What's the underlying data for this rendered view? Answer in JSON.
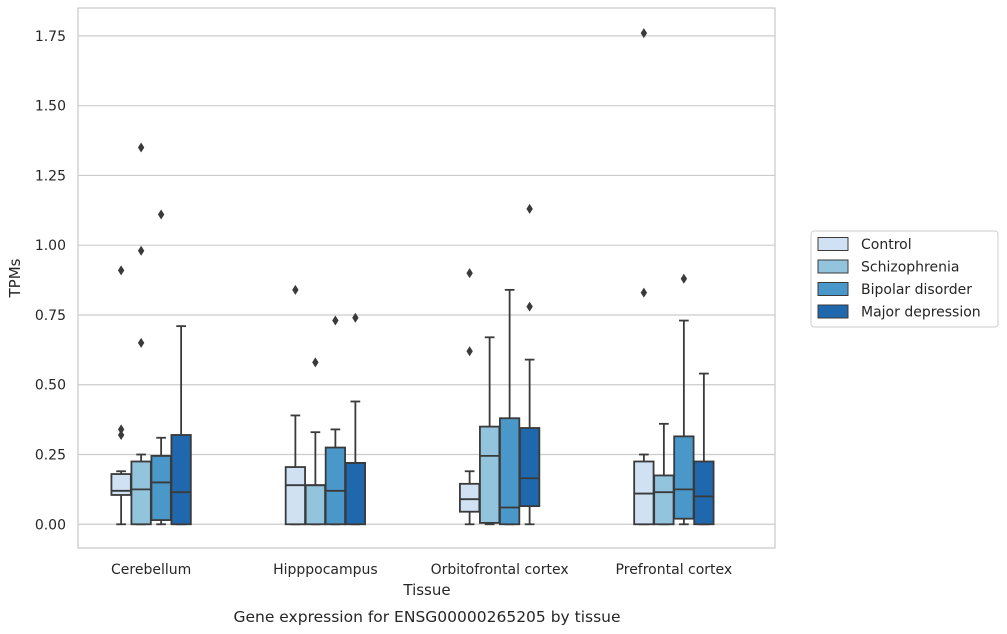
{
  "chart_data": {
    "type": "box",
    "title": "",
    "caption": "Gene expression for ENSG00000265205 by tissue",
    "xlabel": "Tissue",
    "ylabel": "TPMs",
    "ylim": [
      -0.085,
      1.85
    ],
    "yticks": [
      0.0,
      0.25,
      0.5,
      0.75,
      1.0,
      1.25,
      1.5,
      1.75
    ],
    "ytick_labels": [
      "0.00",
      "0.25",
      "0.50",
      "0.75",
      "1.00",
      "1.25",
      "1.50",
      "1.75"
    ],
    "grid": "horizontal",
    "legend_position": "right",
    "categories": [
      "Cerebellum",
      "Hipppocampus",
      "Orbitofrontal cortex",
      "Prefrontal cortex"
    ],
    "series": [
      {
        "name": "Control",
        "color": "#cfe1f2",
        "boxes": [
          {
            "whislo": 0.0,
            "q1": 0.105,
            "med": 0.12,
            "q3": 0.18,
            "whishi": 0.19,
            "fliers": [
              0.91,
              0.34,
              0.32
            ]
          },
          {
            "whislo": 0.0,
            "q1": 0.0,
            "med": 0.14,
            "q3": 0.205,
            "whishi": 0.39,
            "fliers": [
              0.84
            ]
          },
          {
            "whislo": 0.0,
            "q1": 0.045,
            "med": 0.09,
            "q3": 0.145,
            "whishi": 0.19,
            "fliers": [
              0.9,
              0.62
            ]
          },
          {
            "whislo": 0.0,
            "q1": 0.0,
            "med": 0.11,
            "q3": 0.225,
            "whishi": 0.25,
            "fliers": [
              1.76,
              0.83
            ]
          }
        ]
      },
      {
        "name": "Schizophrenia",
        "color": "#93c4de",
        "boxes": [
          {
            "whislo": 0.0,
            "q1": 0.0,
            "med": 0.125,
            "q3": 0.225,
            "whishi": 0.25,
            "fliers": [
              1.35,
              0.98,
              0.65
            ]
          },
          {
            "whislo": 0.0,
            "q1": 0.0,
            "med": 0.14,
            "q3": 0.14,
            "whishi": 0.33,
            "fliers": [
              0.58
            ]
          },
          {
            "whislo": 0.0,
            "q1": 0.005,
            "med": 0.245,
            "q3": 0.35,
            "whishi": 0.67,
            "fliers": []
          },
          {
            "whislo": 0.0,
            "q1": 0.0,
            "med": 0.115,
            "q3": 0.175,
            "whishi": 0.36,
            "fliers": []
          }
        ]
      },
      {
        "name": "Bipolar disorder",
        "color": "#4a98c9",
        "boxes": [
          {
            "whislo": 0.0,
            "q1": 0.015,
            "med": 0.15,
            "q3": 0.245,
            "whishi": 0.31,
            "fliers": [
              1.11
            ]
          },
          {
            "whislo": 0.0,
            "q1": 0.0,
            "med": 0.12,
            "q3": 0.275,
            "whishi": 0.34,
            "fliers": [
              0.73
            ]
          },
          {
            "whislo": 0.0,
            "q1": 0.0,
            "med": 0.06,
            "q3": 0.38,
            "whishi": 0.84,
            "fliers": []
          },
          {
            "whislo": 0.0,
            "q1": 0.02,
            "med": 0.125,
            "q3": 0.315,
            "whishi": 0.73,
            "fliers": [
              0.88
            ]
          }
        ]
      },
      {
        "name": "Major depression",
        "color": "#2068ad",
        "boxes": [
          {
            "whislo": 0.0,
            "q1": 0.0,
            "med": 0.115,
            "q3": 0.32,
            "whishi": 0.71,
            "fliers": []
          },
          {
            "whislo": 0.0,
            "q1": 0.0,
            "med": 0.22,
            "q3": 0.22,
            "whishi": 0.44,
            "fliers": [
              0.74
            ]
          },
          {
            "whislo": 0.0,
            "q1": 0.065,
            "med": 0.165,
            "q3": 0.345,
            "whishi": 0.59,
            "fliers": [
              1.13,
              0.78
            ]
          },
          {
            "whislo": 0.0,
            "q1": 0.0,
            "med": 0.1,
            "q3": 0.225,
            "whishi": 0.54,
            "fliers": []
          }
        ]
      }
    ]
  }
}
